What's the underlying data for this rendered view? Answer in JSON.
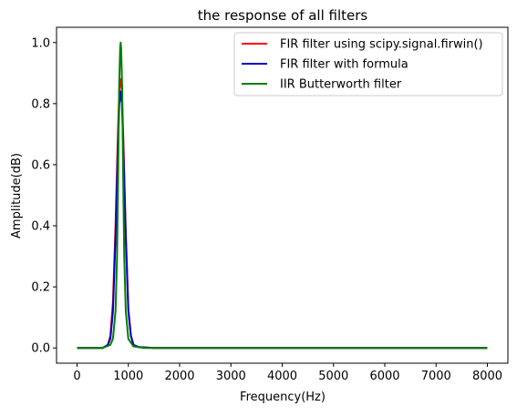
{
  "chart_data": {
    "type": "line",
    "title": "the response of all filters",
    "xlabel": "Frequency(Hz)",
    "ylabel": "Amplitude(dB)",
    "xlim": [
      -400,
      8400
    ],
    "ylim": [
      -0.05,
      1.05
    ],
    "xticks": [
      "0",
      "1000",
      "2000",
      "3000",
      "4000",
      "5000",
      "6000",
      "7000",
      "8000"
    ],
    "yticks": [
      "0.0",
      "0.2",
      "0.4",
      "0.6",
      "0.8",
      "1.0"
    ],
    "legend_position": "top-right",
    "grid": false,
    "series": [
      {
        "name": "FIR filter using scipy.signal.firwin()",
        "color": "#ff0000",
        "x": [
          0,
          500,
          600,
          650,
          700,
          750,
          800,
          825,
          850,
          875,
          900,
          950,
          1000,
          1050,
          1100,
          1200,
          1500,
          2000,
          3000,
          4000,
          5000,
          6000,
          7000,
          8000
        ],
        "y": [
          0,
          0,
          0.01,
          0.04,
          0.15,
          0.4,
          0.72,
          0.85,
          0.88,
          0.84,
          0.7,
          0.38,
          0.13,
          0.04,
          0.01,
          0.003,
          0,
          0,
          0,
          0,
          0,
          0,
          0,
          0
        ]
      },
      {
        "name": "FIR filter with formula",
        "color": "#0000cc",
        "x": [
          0,
          500,
          600,
          650,
          700,
          750,
          800,
          825,
          850,
          875,
          900,
          950,
          1000,
          1050,
          1100,
          1200,
          1500,
          2000,
          3000,
          4000,
          5000,
          6000,
          7000,
          8000
        ],
        "y": [
          0,
          0,
          0.01,
          0.03,
          0.12,
          0.36,
          0.68,
          0.8,
          0.84,
          0.8,
          0.67,
          0.36,
          0.12,
          0.04,
          0.01,
          0.003,
          0,
          0,
          0,
          0,
          0,
          0,
          0,
          0
        ]
      },
      {
        "name": "IIR Butterworth filter",
        "color": "#008000",
        "x": [
          0,
          500,
          650,
          700,
          750,
          780,
          800,
          820,
          840,
          850,
          860,
          880,
          900,
          920,
          950,
          1000,
          1100,
          1300,
          2000,
          3000,
          4000,
          5000,
          6000,
          7000,
          8000
        ],
        "y": [
          0,
          0,
          0.01,
          0.03,
          0.12,
          0.3,
          0.55,
          0.85,
          0.98,
          1.0,
          0.98,
          0.85,
          0.55,
          0.3,
          0.12,
          0.03,
          0.005,
          0,
          0,
          0,
          0,
          0,
          0,
          0,
          0
        ]
      }
    ]
  }
}
